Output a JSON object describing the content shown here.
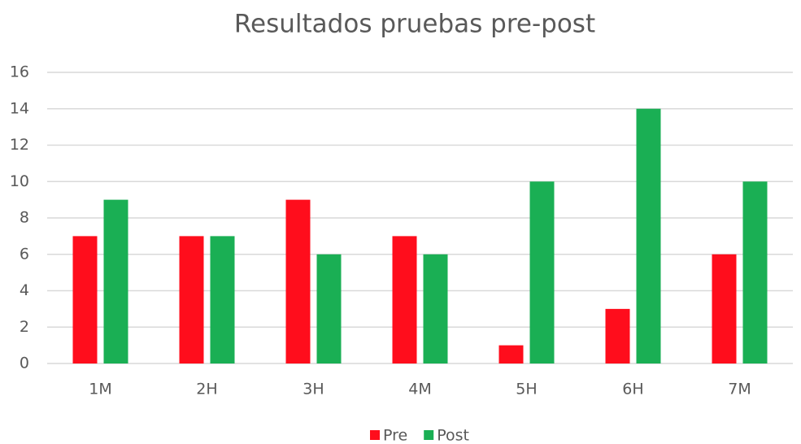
{
  "chart_data": {
    "type": "bar",
    "title": "Resultados pruebas pre-post",
    "categories": [
      "1M",
      "2H",
      "3H",
      "4M",
      "5H",
      "6H",
      "7M"
    ],
    "series": [
      {
        "name": "Pre",
        "color": "#ff0d1c",
        "values": [
          7,
          7,
          9,
          7,
          1,
          3,
          6
        ]
      },
      {
        "name": "Post",
        "color": "#1aaf54",
        "values": [
          9,
          7,
          6,
          6,
          10,
          14,
          10
        ]
      }
    ],
    "ylim": [
      0,
      16
    ],
    "yticks": [
      0,
      2,
      4,
      6,
      8,
      10,
      12,
      14,
      16
    ],
    "grid": true,
    "legend": "bottom"
  }
}
